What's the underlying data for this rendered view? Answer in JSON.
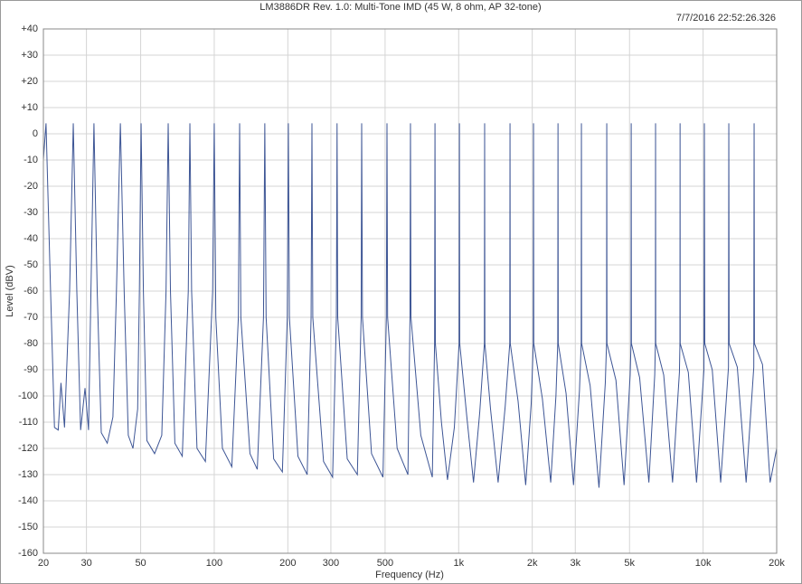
{
  "chart_data": {
    "type": "line",
    "title": "LM3886DR Rev. 1.0: Multi-Tone IMD (45 W, 8 ohm, AP 32-tone)",
    "timestamp": "7/7/2016 22:52:26.326",
    "xlabel": "Frequency (Hz)",
    "ylabel": "Level (dBV)",
    "log_x": true,
    "grid": true,
    "color": "#3d5595",
    "xlim": [
      20,
      20000
    ],
    "ylim": [
      -160,
      40
    ],
    "xticks": [
      20,
      30,
      50,
      100,
      200,
      300,
      500,
      {
        "value": 1000,
        "label": "1k"
      },
      {
        "value": 2000,
        "label": "2k"
      },
      {
        "value": 3000,
        "label": "3k"
      },
      {
        "value": 5000,
        "label": "5k"
      },
      {
        "value": 10000,
        "label": "10k"
      },
      {
        "value": 20000,
        "label": "20k"
      }
    ],
    "yticks": [
      {
        "value": 40,
        "label": "+40"
      },
      {
        "value": 30,
        "label": "+30"
      },
      {
        "value": 20,
        "label": "+20"
      },
      {
        "value": 10,
        "label": "+10"
      },
      0,
      -10,
      -20,
      -30,
      -40,
      -50,
      -60,
      -70,
      -80,
      -90,
      -100,
      -110,
      -120,
      -130,
      -140,
      -150,
      -160
    ],
    "x": [
      20,
      20.5,
      21.4,
      22.2,
      23,
      23.6,
      24.4,
      25.6,
      26.5,
      27.4,
      28.4,
      29.6,
      30.6,
      31.3,
      32.2,
      33.2,
      34.5,
      36.5,
      38.5,
      39.8,
      41.3,
      42.8,
      44.5,
      46.5,
      48.6,
      49.4,
      50.2,
      51.3,
      53,
      57,
      61,
      63.5,
      64.8,
      66.2,
      69,
      74,
      78.3,
      79.5,
      80.8,
      85,
      92,
      98.5,
      100,
      101.5,
      108,
      118,
      125.5,
      127,
      128.5,
      140,
      150,
      159,
      161,
      163,
      175,
      190,
      199,
      201,
      203,
      220,
      240,
      249,
      251,
      253,
      280,
      305,
      316,
      318,
      320,
      350,
      385,
      399,
      401,
      404,
      440,
      490,
      506,
      509,
      512,
      560,
      620,
      632,
      635,
      638,
      700,
      780,
      797,
      800,
      803,
      850,
      900,
      960,
      1004,
      1007,
      1010,
      1080,
      1150,
      1220,
      1274,
      1277,
      1280,
      1350,
      1450,
      1550,
      1618,
      1622,
      1626,
      1750,
      1880,
      1980,
      2020,
      2024,
      2029,
      2200,
      2380,
      2500,
      2543,
      2549,
      2555,
      2750,
      2950,
      3120,
      3171,
      3178,
      3185,
      3450,
      3750,
      3980,
      4027,
      4035,
      4043,
      4400,
      4750,
      5030,
      5070,
      5080,
      5090,
      5500,
      6000,
      6340,
      6380,
      6390,
      6400,
      6900,
      7500,
      8000,
      8040,
      8050,
      8060,
      8700,
      9400,
      10080,
      10120,
      10160,
      10900,
      11800,
      12700,
      12740,
      12780,
      13800,
      15000,
      16120,
      16170,
      16220,
      17500,
      18800,
      20000
    ],
    "values": [
      -10,
      4,
      -60,
      -112,
      -113,
      -95,
      -112,
      -60,
      4,
      -60,
      -113,
      -97,
      -113,
      -60,
      4,
      -60,
      -114,
      -118,
      -108,
      -60,
      4,
      -60,
      -115,
      -120,
      -105,
      -60,
      4,
      -60,
      -117,
      -122,
      -115,
      -60,
      4,
      -60,
      -118,
      -123,
      -60,
      4,
      -60,
      -120,
      -125,
      -60,
      4,
      -70,
      -120,
      -127,
      -70,
      4,
      -70,
      -122,
      -128,
      -70,
      4,
      -70,
      -124,
      -129,
      -70,
      4,
      -70,
      -123,
      -130,
      -70,
      4,
      -70,
      -125,
      -131,
      -70,
      4,
      -70,
      -124,
      -130,
      -70,
      4,
      -70,
      -122,
      -131,
      -70,
      4,
      -70,
      -120,
      -130,
      -70,
      4,
      -70,
      -115,
      -131,
      -80,
      4,
      -80,
      -110,
      -132,
      -112,
      -80,
      4,
      -80,
      -108,
      -133,
      -106,
      -80,
      4,
      -80,
      -105,
      -133,
      -104,
      -80,
      4,
      -80,
      -102,
      -134,
      -103,
      -80,
      4,
      -80,
      -101,
      -133,
      -100,
      -80,
      4,
      -80,
      -99,
      -134,
      -98,
      -80,
      4,
      -80,
      -96,
      -135,
      -95,
      -80,
      4,
      -80,
      -94,
      -134,
      -92,
      -80,
      4,
      -80,
      -93,
      -133,
      -92,
      -80,
      4,
      -80,
      -92,
      -133,
      -91,
      -80,
      4,
      -80,
      -91,
      -133,
      -90,
      4,
      -80,
      -90,
      -133,
      -89,
      4,
      -80,
      -89,
      -133,
      -89,
      4,
      -80,
      -88,
      -133,
      -120
    ]
  }
}
